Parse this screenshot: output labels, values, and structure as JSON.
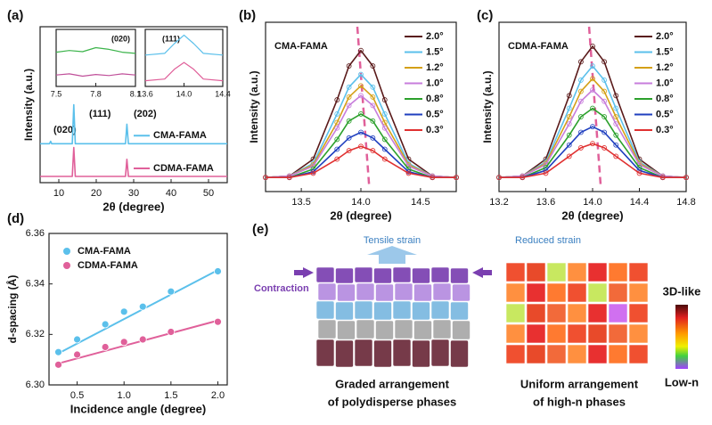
{
  "chart_data": [
    {
      "type": "line",
      "panel": "(a)",
      "xlabel": "2θ (degree)",
      "ylabel": "Intensity (a.u.)",
      "annotations": [
        "(020)",
        "(111)",
        "(202)"
      ],
      "x": [
        5,
        7.5,
        7.8,
        8.1,
        10,
        13.6,
        14.0,
        14.4,
        20,
        27.8,
        28.2,
        28.6,
        35,
        42,
        55
      ],
      "series": [
        {
          "name": "CMA-FAMA",
          "color": "#5bc0eb",
          "values": [
            5,
            5,
            5.3,
            5,
            5,
            5,
            10,
            5,
            5,
            5,
            7.5,
            5,
            5,
            5,
            5
          ]
        },
        {
          "name": "CDMA-FAMA",
          "color": "#e0609a",
          "values": [
            0.8,
            0.8,
            0.8,
            0.8,
            0.8,
            0.8,
            4.5,
            0.8,
            0.8,
            0.8,
            3.0,
            0.8,
            0.8,
            0.8,
            0.8
          ]
        }
      ],
      "xlim": [
        5,
        55
      ],
      "xticks": [
        10,
        20,
        30,
        40,
        50
      ],
      "ylim": [
        0,
        20
      ]
    },
    {
      "type": "line",
      "annotations": [
        "(020)"
      ],
      "x": [
        7.5,
        7.6,
        7.7,
        7.8,
        7.9,
        8.0,
        8.1
      ],
      "series": [
        {
          "color": "#3cb44b",
          "values": [
            6,
            6.3,
            6.1,
            6.8,
            6.5,
            6,
            5.8
          ]
        },
        {
          "color": "#c0509a",
          "values": [
            2,
            2.2,
            1.8,
            2.1,
            1.9,
            2.2,
            2
          ]
        }
      ],
      "xlim": [
        7.5,
        8.1
      ],
      "xticks": [
        7.5,
        7.8,
        8.1
      ],
      "ylim": [
        0,
        10
      ]
    },
    {
      "type": "line",
      "annotations": [
        "(111)"
      ],
      "x": [
        13.6,
        13.8,
        13.9,
        14.0,
        14.1,
        14.2,
        14.4
      ],
      "series": [
        {
          "color": "#5bc0eb",
          "values": [
            5.5,
            5.8,
            7.5,
            9,
            7.5,
            5.8,
            5.5
          ]
        },
        {
          "color": "#e0609a",
          "values": [
            1,
            1.3,
            3,
            4.2,
            3,
            1.3,
            1
          ]
        }
      ],
      "xlim": [
        13.6,
        14.4
      ],
      "xticks": [
        13.6,
        {
          "value": 14,
          "label": "14.0"
        },
        14.4
      ],
      "ylim": [
        0,
        10
      ]
    },
    {
      "type": "line",
      "panel": "(b)",
      "xlabel": "2θ (degree)",
      "ylabel": "Intensity (a.u.)",
      "annotations": [
        "CMA-FAMA"
      ],
      "x": [
        13.2,
        13.4,
        13.6,
        13.8,
        13.9,
        14.0,
        14.1,
        14.2,
        14.4,
        14.6,
        14.8
      ],
      "series": [
        {
          "name": "2.0°",
          "color": "#5a1a1a",
          "values": [
            1,
            1.1,
            2.3,
            6.5,
            8.9,
            10,
            8.9,
            6.5,
            2.3,
            1.1,
            1
          ]
        },
        {
          "name": "1.5°",
          "color": "#5bc0eb",
          "values": [
            1,
            1.1,
            2,
            5.5,
            7.4,
            8.3,
            7.4,
            5.5,
            2,
            1.1,
            1
          ]
        },
        {
          "name": "1.2°",
          "color": "#d4a017",
          "values": [
            1,
            1.1,
            1.9,
            4.9,
            6.7,
            7.5,
            6.7,
            4.9,
            1.9,
            1.1,
            1
          ]
        },
        {
          "name": "1.0°",
          "color": "#c77ddb",
          "values": [
            1,
            1.1,
            1.8,
            4.5,
            6.1,
            6.8,
            6.1,
            4.5,
            1.8,
            1.1,
            1
          ]
        },
        {
          "name": "0.8°",
          "color": "#2ca02c",
          "values": [
            1,
            1,
            1.6,
            3.7,
            5,
            5.5,
            5,
            3.7,
            1.6,
            1,
            1
          ]
        },
        {
          "name": "0.5°",
          "color": "#1f3fbf",
          "values": [
            1,
            1,
            1.4,
            3,
            3.8,
            4.2,
            3.8,
            3,
            1.4,
            1,
            1
          ]
        },
        {
          "name": "0.3°",
          "color": "#e03030",
          "values": [
            1,
            1,
            1.3,
            2.3,
            2.9,
            3.2,
            2.9,
            2.3,
            1.3,
            1,
            1
          ]
        }
      ],
      "xlim": [
        13.2,
        14.8
      ],
      "xticks": [
        13.5,
        {
          "value": 14,
          "label": "14.0"
        },
        14.5
      ],
      "ylim": [
        0,
        12
      ]
    },
    {
      "type": "line",
      "panel": "(c)",
      "xlabel": "2θ (degree)",
      "ylabel": "Intensity (a.u.)",
      "annotations": [
        "CDMA-FAMA"
      ],
      "x": [
        13.2,
        13.4,
        13.6,
        13.8,
        13.9,
        14.0,
        14.1,
        14.2,
        14.4,
        14.6,
        14.8
      ],
      "series": [
        {
          "name": "2.0°",
          "color": "#5a1a1a",
          "values": [
            1,
            1.1,
            2.3,
            6.8,
            9.2,
            10.3,
            9.2,
            6.8,
            2.3,
            1.1,
            1
          ]
        },
        {
          "name": "1.5°",
          "color": "#5bc0eb",
          "values": [
            1,
            1.1,
            2.1,
            5.9,
            7.9,
            8.9,
            7.9,
            5.9,
            2.1,
            1.1,
            1
          ]
        },
        {
          "name": "1.2°",
          "color": "#d4a017",
          "values": [
            1,
            1.1,
            2,
            5.3,
            7.1,
            8,
            7.1,
            5.3,
            2,
            1.1,
            1
          ]
        },
        {
          "name": "1.0°",
          "color": "#c77ddb",
          "values": [
            1,
            1.1,
            1.9,
            4.8,
            6.4,
            7.2,
            6.4,
            4.8,
            1.9,
            1.1,
            1
          ]
        },
        {
          "name": "0.8°",
          "color": "#2ca02c",
          "values": [
            1,
            1,
            1.7,
            4,
            5.3,
            5.9,
            5.3,
            4,
            1.7,
            1,
            1
          ]
        },
        {
          "name": "0.5°",
          "color": "#1f3fbf",
          "values": [
            1,
            1,
            1.5,
            3.3,
            4.2,
            4.6,
            4.2,
            3.3,
            1.5,
            1,
            1
          ]
        },
        {
          "name": "0.3°",
          "color": "#e03030",
          "values": [
            1,
            1,
            1.3,
            2.5,
            3.1,
            3.4,
            3.1,
            2.5,
            1.3,
            1,
            1
          ]
        }
      ],
      "xlim": [
        13.2,
        14.8
      ],
      "xticks": [
        13.2,
        13.6,
        {
          "value": 14,
          "label": "14.0"
        },
        14.4,
        14.8
      ],
      "ylim": [
        0,
        12
      ]
    },
    {
      "type": "scatter",
      "panel": "(d)",
      "xlabel": "Incidence angle (degree)",
      "ylabel": "d-spacing (Å)",
      "x": [
        0.3,
        0.5,
        0.8,
        1.0,
        1.2,
        1.5,
        2.0
      ],
      "fit_x": [
        0.3,
        2.0
      ],
      "series": [
        {
          "name": "CMA-FAMA",
          "color": "#5bc0eb",
          "values": [
            6.313,
            6.318,
            6.324,
            6.329,
            6.331,
            6.337,
            6.345
          ],
          "fit": [
            6.3125,
            6.3455
          ]
        },
        {
          "name": "CDMA-FAMA",
          "color": "#e0609a",
          "values": [
            6.308,
            6.312,
            6.315,
            6.317,
            6.318,
            6.321,
            6.325
          ],
          "fit": [
            6.3085,
            6.3255
          ]
        }
      ],
      "xlim": [
        0.2,
        2.1
      ],
      "xticks": [
        0.5,
        {
          "value": 1,
          "label": "1.0"
        },
        1.5,
        {
          "value": 2,
          "label": "2.0"
        }
      ],
      "ylim": [
        6.3,
        6.36
      ],
      "yticks": [
        {
          "value": 6.3,
          "label": "6.30"
        },
        6.32,
        6.34,
        6.36
      ]
    }
  ],
  "diagram": {
    "panel": "(e)",
    "left": {
      "top_label": "Tensile strain",
      "side_label": "Contraction",
      "caption": [
        "Graded arrangement",
        "of polydisperse phases"
      ]
    },
    "right": {
      "top_label": "Reduced strain",
      "caption": [
        "Uniform arrangement",
        "of high-n phases"
      ],
      "colorbar": {
        "top": "3D-like",
        "bottom": "Low-n"
      }
    }
  }
}
